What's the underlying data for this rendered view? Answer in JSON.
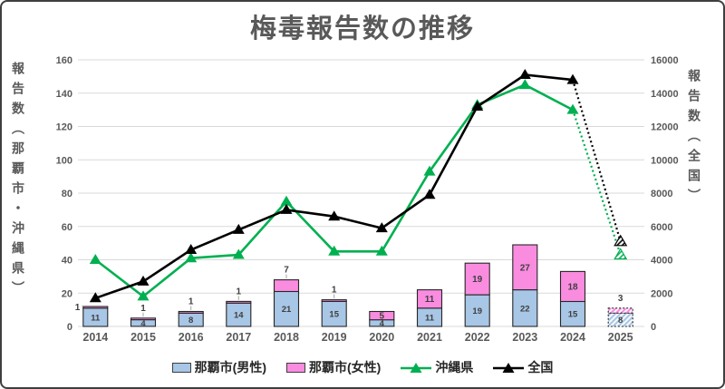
{
  "chart_data": {
    "type": "combo_bar_line",
    "title": "梅毒報告数の推移",
    "categories": [
      "2014",
      "2015",
      "2016",
      "2017",
      "2018",
      "2019",
      "2020",
      "2021",
      "2022",
      "2023",
      "2024",
      "2025"
    ],
    "bar_series": [
      {
        "name": "那覇市(男性)",
        "color": "#A8C6E5",
        "values": [
          11,
          4,
          8,
          14,
          21,
          15,
          4,
          11,
          19,
          22,
          15,
          8
        ]
      },
      {
        "name": "那覇市(女性)",
        "color": "#FA8CE0",
        "values": [
          1,
          1,
          1,
          1,
          7,
          1,
          5,
          11,
          19,
          27,
          18,
          3
        ]
      }
    ],
    "line_series": [
      {
        "name": "沖縄県",
        "color": "#00B050",
        "axis": "left",
        "values": [
          40,
          18,
          41,
          43,
          75,
          45,
          45,
          93,
          133,
          145,
          130,
          43
        ]
      },
      {
        "name": "全国",
        "color": "#000000",
        "axis": "right",
        "values": [
          1700,
          2700,
          4600,
          5800,
          7000,
          6600,
          5900,
          7900,
          13200,
          15100,
          14800,
          5100
        ]
      }
    ],
    "left_axis": {
      "title": "報告数（那覇市・沖縄県）",
      "min": 0,
      "max": 160,
      "step": 20,
      "ticks": [
        "0",
        "20",
        "40",
        "60",
        "80",
        "100",
        "120",
        "140",
        "160"
      ]
    },
    "right_axis": {
      "title": "報告数（全国）",
      "min": 0,
      "max": 16000,
      "step": 2000,
      "ticks": [
        "0",
        "2000",
        "4000",
        "6000",
        "8000",
        "10000",
        "12000",
        "14000",
        "16000"
      ]
    },
    "legend_position": "bottom",
    "grid": true,
    "grid_color": "#D9D9D9",
    "last_category_provisional": true,
    "female_label_placement": [
      "left",
      "above",
      "above",
      "above",
      "above",
      "above",
      "inside",
      "inside",
      "inside",
      "inside",
      "inside",
      "above-nl"
    ]
  }
}
